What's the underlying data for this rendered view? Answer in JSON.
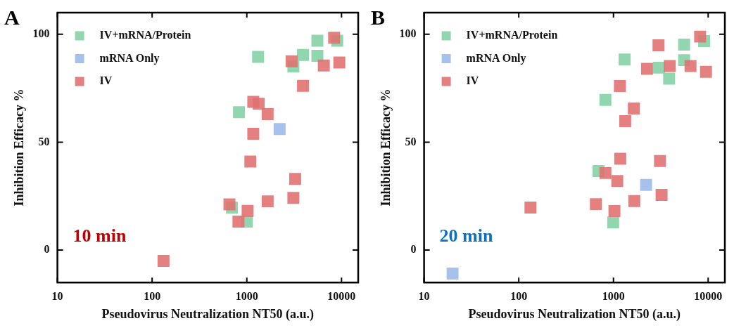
{
  "chart_data": [
    {
      "type": "scatter",
      "title": null,
      "annotations": [
        "A",
        "10 min"
      ],
      "xlabel": "Pseudovirus Neutralization NT50 (a.u.)",
      "ylabel": "Inhibition Efficacy %",
      "log": "x",
      "xlim": [
        10,
        15000
      ],
      "xticks": [
        10,
        100,
        1000,
        10000
      ],
      "ylim": [
        -15,
        110
      ],
      "yticks": [
        0,
        50,
        100
      ],
      "grid": false,
      "legend": "top left",
      "marker": "square",
      "series": [
        {
          "name": "IV+mRNA/Protein",
          "color": "#82d0a4",
          "x": [
            5560,
            5560,
            9010,
            3920,
            3100,
            1315,
            826,
            697,
            1000
          ],
          "values": [
            97,
            90,
            97,
            90.4,
            85,
            89.5,
            63.9,
            19.6,
            13.2
          ]
        },
        {
          "name": "mRNA Only",
          "color": "#9ab8e8",
          "x": [
            2220
          ],
          "values": [
            56.1
          ]
        },
        {
          "name": "IV",
          "color": "#e0706e",
          "x": [
            8350,
            9480,
            6500,
            2970,
            3920,
            1170,
            1335,
            1660,
            1170,
            1090,
            3240,
            3100,
            1660,
            655,
            1020,
            816,
            132
          ],
          "values": [
            98.4,
            86.9,
            85.5,
            87.5,
            76.1,
            68.7,
            67.8,
            63,
            53.9,
            41,
            33,
            24.2,
            22.6,
            21.2,
            18.2,
            13.2,
            -5
          ]
        }
      ]
    },
    {
      "type": "scatter",
      "annotations": [
        "B",
        "20 min"
      ],
      "xlabel": "Pseudovirus Neutralization NT50 (a.u.)",
      "ylabel": "Inhibition Efficacy %",
      "log": "x",
      "xlim": [
        10,
        15000
      ],
      "xticks": [
        10,
        100,
        1000,
        10000
      ],
      "ylim": [
        -15,
        110
      ],
      "yticks": [
        0,
        50,
        100
      ],
      "grid": false,
      "legend": "top left",
      "marker": "square",
      "series": [
        {
          "name": "IV+mRNA/Protein",
          "color": "#82d0a4",
          "x": [
            9060,
            5570,
            5570,
            1310,
            3020,
            3870,
            822,
            695,
            993
          ],
          "values": [
            96.8,
            95.2,
            88,
            88.3,
            84.5,
            79.4,
            69.6,
            36.6,
            12.8
          ]
        },
        {
          "name": "mRNA Only",
          "color": "#9ab8e8",
          "x": [
            2210,
            20
          ],
          "values": [
            30.2,
            -10.9
          ]
        },
        {
          "name": "IV",
          "color": "#e0706e",
          "x": [
            8220,
            2990,
            2260,
            3930,
            6510,
            9480,
            1170,
            1640,
            1330,
            1180,
            3100,
            822,
            1097,
            3220,
            1660,
            652,
            1024,
            133
          ],
          "values": [
            98.9,
            94.9,
            84,
            85.3,
            85.3,
            82.6,
            76,
            65.6,
            59.7,
            42.3,
            41.3,
            35.7,
            32,
            25.6,
            22.7,
            21.3,
            18.1,
            19.7
          ]
        }
      ]
    }
  ]
}
